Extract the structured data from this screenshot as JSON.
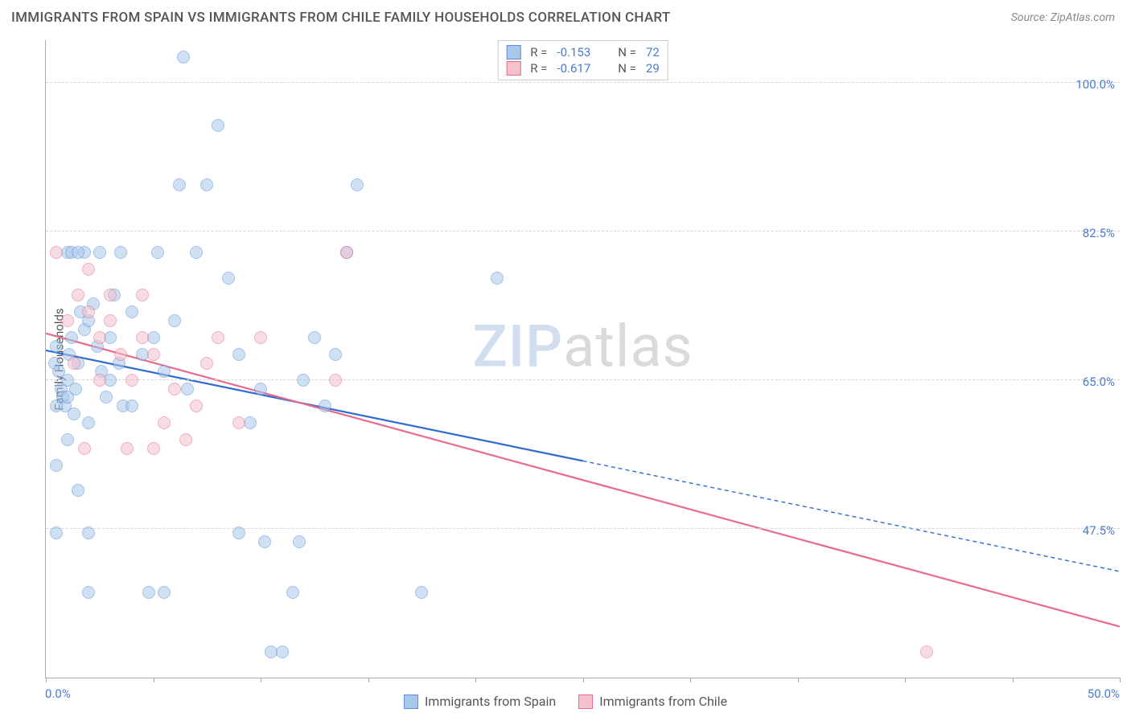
{
  "header": {
    "title": "IMMIGRANTS FROM SPAIN VS IMMIGRANTS FROM CHILE FAMILY HOUSEHOLDS CORRELATION CHART",
    "source_prefix": "Source: ",
    "source": "ZipAtlas.com"
  },
  "watermark": {
    "part1": "ZIP",
    "part2": "atlas"
  },
  "chart": {
    "type": "scatter-with-regression",
    "ylabel": "Family Households",
    "xlim": [
      0,
      50
    ],
    "ylim": [
      30,
      105
    ],
    "x_axis_labels": {
      "left": "0.0%",
      "right": "50.0%"
    },
    "y_gridlines": [
      47.5,
      65.0,
      82.5,
      100.0
    ],
    "y_grid_labels": [
      "47.5%",
      "65.0%",
      "82.5%",
      "100.0%"
    ],
    "x_ticks": [
      0,
      5,
      10,
      15,
      20,
      25,
      30,
      35,
      40,
      45,
      50
    ],
    "grid_color": "#d6d6d6",
    "axis_color": "#aaaaaa",
    "background_color": "#ffffff",
    "label_color": "#4a7bd0",
    "point_radius": 8,
    "point_opacity": 0.55,
    "series": [
      {
        "name": "Immigrants from Spain",
        "color_fill": "#a9c7eb",
        "color_stroke": "#5b8fd6",
        "r_value": "-0.153",
        "n_value": "72",
        "trend": {
          "x1": 0,
          "y1": 68.5,
          "x2": 25,
          "y2": 55.5,
          "x2_dash": 50,
          "y2_dash": 42.5,
          "stroke": "#2f6bd0",
          "width": 2.2
        },
        "points": [
          [
            0.4,
            67
          ],
          [
            0.6,
            66
          ],
          [
            0.7,
            64
          ],
          [
            0.8,
            63
          ],
          [
            0.9,
            62
          ],
          [
            0.5,
            69
          ],
          [
            1.0,
            65
          ],
          [
            1.1,
            68
          ],
          [
            1.2,
            70
          ],
          [
            1.0,
            63
          ],
          [
            1.3,
            61
          ],
          [
            1.4,
            64
          ],
          [
            1.5,
            67
          ],
          [
            1.6,
            73
          ],
          [
            1.8,
            71
          ],
          [
            1.0,
            80
          ],
          [
            1.2,
            80
          ],
          [
            1.8,
            80
          ],
          [
            2.0,
            72
          ],
          [
            2.2,
            74
          ],
          [
            2.4,
            69
          ],
          [
            2.6,
            66
          ],
          [
            2.8,
            63
          ],
          [
            3.0,
            70
          ],
          [
            3.2,
            75
          ],
          [
            3.4,
            67
          ],
          [
            3.6,
            62
          ],
          [
            4.0,
            73
          ],
          [
            4.5,
            68
          ],
          [
            5.0,
            70
          ],
          [
            5.2,
            80
          ],
          [
            5.5,
            66
          ],
          [
            6.0,
            72
          ],
          [
            6.2,
            88
          ],
          [
            6.4,
            103
          ],
          [
            6.6,
            64
          ],
          [
            7.0,
            80
          ],
          [
            7.5,
            88
          ],
          [
            8.0,
            95
          ],
          [
            8.5,
            77
          ],
          [
            9.0,
            68
          ],
          [
            10.0,
            64
          ],
          [
            10.2,
            46
          ],
          [
            10.5,
            33
          ],
          [
            11.0,
            33
          ],
          [
            11.5,
            40
          ],
          [
            11.8,
            46
          ],
          [
            12.0,
            65
          ],
          [
            12.5,
            70
          ],
          [
            13.0,
            62
          ],
          [
            13.5,
            68
          ],
          [
            14.0,
            80
          ],
          [
            14.5,
            88
          ],
          [
            9.5,
            60
          ],
          [
            2.0,
            60
          ],
          [
            0.5,
            55
          ],
          [
            1.0,
            58
          ],
          [
            1.5,
            52
          ],
          [
            9.0,
            47
          ],
          [
            2.0,
            47
          ],
          [
            1.5,
            80
          ],
          [
            2.5,
            80
          ],
          [
            3.5,
            80
          ],
          [
            21.0,
            77
          ],
          [
            4.0,
            62
          ],
          [
            3.0,
            65
          ],
          [
            17.5,
            40
          ],
          [
            0.5,
            47
          ],
          [
            2.0,
            40
          ],
          [
            4.8,
            40
          ],
          [
            5.5,
            40
          ],
          [
            0.5,
            62
          ]
        ]
      },
      {
        "name": "Immigrants from Chile",
        "color_fill": "#f4c1cd",
        "color_stroke": "#e76b8a",
        "r_value": "-0.617",
        "n_value": "29",
        "trend": {
          "x1": 0,
          "y1": 70.5,
          "x2": 50,
          "y2": 36,
          "stroke": "#e76b8a",
          "width": 2.2
        },
        "points": [
          [
            0.5,
            80
          ],
          [
            1.5,
            75
          ],
          [
            2.0,
            73
          ],
          [
            2.5,
            70
          ],
          [
            3.0,
            72
          ],
          [
            3.5,
            68
          ],
          [
            4.0,
            65
          ],
          [
            4.5,
            70
          ],
          [
            5.0,
            68
          ],
          [
            5.5,
            60
          ],
          [
            13.5,
            65
          ],
          [
            6.0,
            64
          ],
          [
            6.5,
            58
          ],
          [
            7.0,
            62
          ],
          [
            7.5,
            67
          ],
          [
            8.0,
            70
          ],
          [
            9.0,
            60
          ],
          [
            14.0,
            80
          ],
          [
            2.0,
            78
          ],
          [
            3.0,
            75
          ],
          [
            1.0,
            72
          ],
          [
            2.5,
            65
          ],
          [
            5.0,
            57
          ],
          [
            1.8,
            57
          ],
          [
            3.8,
            57
          ],
          [
            1.3,
            67
          ],
          [
            10.0,
            70
          ],
          [
            4.5,
            75
          ],
          [
            41.0,
            33
          ]
        ]
      }
    ]
  },
  "legend_top": {
    "r_label": "R =",
    "n_label": "N ="
  },
  "legend_bottom": [
    {
      "label": "Immigrants from Spain",
      "fill": "#a9c7eb",
      "stroke": "#5b8fd6"
    },
    {
      "label": "Immigrants from Chile",
      "fill": "#f4c1cd",
      "stroke": "#e76b8a"
    }
  ]
}
